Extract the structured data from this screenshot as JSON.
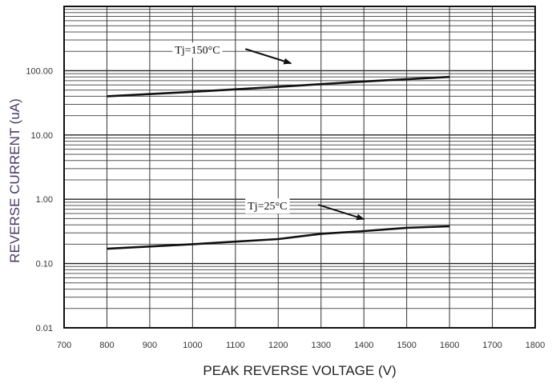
{
  "chart_data": {
    "type": "line",
    "title": "",
    "xlabel": "PEAK REVERSE VOLTAGE (V)",
    "ylabel": "REVERSE CURRENT (uA)",
    "xlim": [
      700,
      1800
    ],
    "ylim": [
      0.01,
      1000
    ],
    "y_scale": "log",
    "grid": true,
    "x_ticks": [
      700,
      800,
      900,
      1000,
      1100,
      1200,
      1300,
      1400,
      1500,
      1600,
      1700,
      1800
    ],
    "x_tick_labels": [
      "700",
      "800",
      "900",
      "1000",
      "1100",
      "1200",
      "1300",
      "1400",
      "1500",
      "1600",
      "1700",
      "1800"
    ],
    "y_ticks": [
      0.01,
      0.1,
      1,
      10,
      100
    ],
    "y_tick_labels": [
      "0.01",
      "0.10",
      "1.00",
      "10.00",
      "100.00"
    ],
    "series": [
      {
        "name": "Tj=150°C",
        "color": "#111111",
        "x": [
          800,
          1000,
          1200,
          1400,
          1600
        ],
        "y": [
          40,
          47,
          56,
          68,
          80
        ]
      },
      {
        "name": "Tj=25°C",
        "color": "#111111",
        "x": [
          800,
          1000,
          1200,
          1300,
          1400,
          1500,
          1600
        ],
        "y": [
          0.17,
          0.2,
          0.24,
          0.29,
          0.32,
          0.36,
          0.38
        ]
      }
    ],
    "annotations": [
      {
        "text": "Tj=150°C",
        "series": 0,
        "arrow_to": [
          1230,
          130
        ]
      },
      {
        "text": "Tj=25°C",
        "series": 1,
        "arrow_to": [
          1400,
          0.49
        ]
      }
    ]
  }
}
